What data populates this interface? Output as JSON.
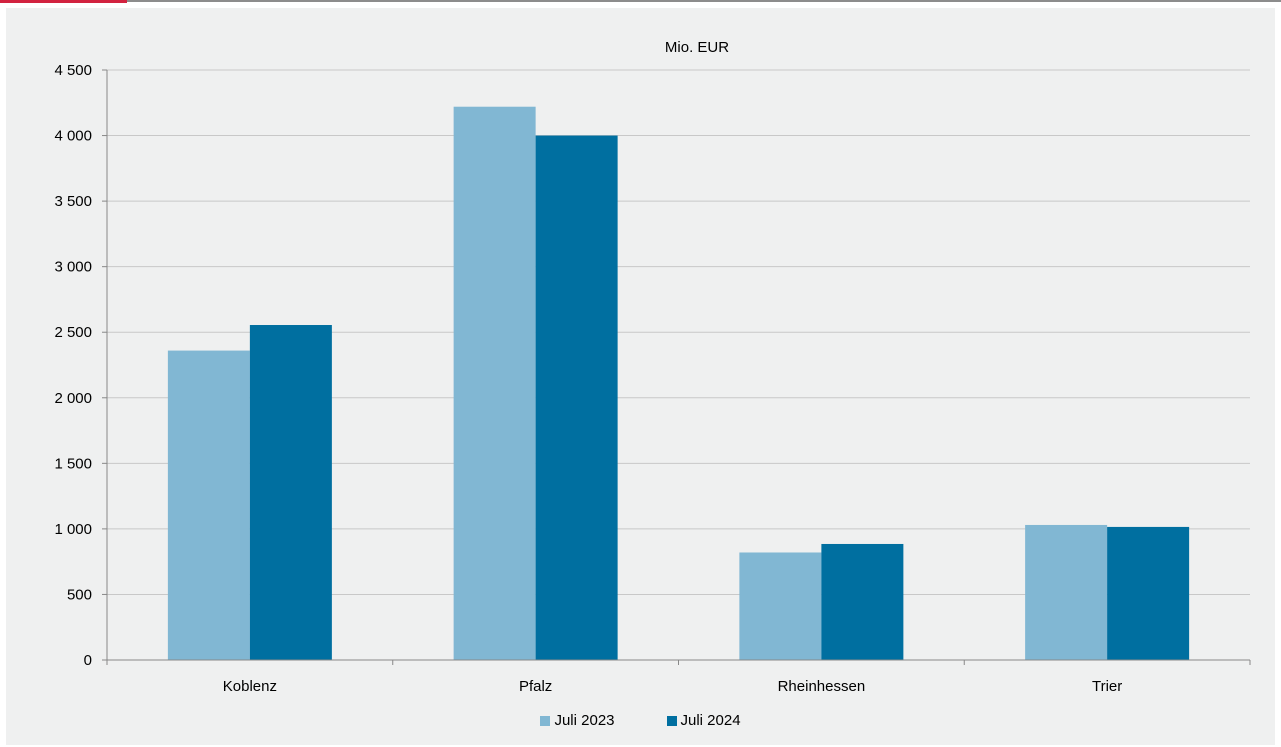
{
  "colors": {
    "accent": "#d2223f",
    "series_2023": "#81b7d3",
    "series_2024": "#006fa0",
    "grid": "#c8c8c8",
    "panel": "#eff0f0"
  },
  "chart_data": {
    "type": "bar",
    "title": "Mio. EUR",
    "xlabel": "",
    "ylabel": "",
    "categories": [
      "Koblenz",
      "Pfalz",
      "Rheinhessen",
      "Trier"
    ],
    "series": [
      {
        "name": "Juli 2023",
        "values": [
          2360,
          4220,
          820,
          1030
        ]
      },
      {
        "name": "Juli 2024",
        "values": [
          2555,
          4000,
          885,
          1015
        ]
      }
    ],
    "ylim": [
      0,
      4500
    ],
    "yticks": [
      0,
      500,
      1000,
      1500,
      2000,
      2500,
      3000,
      3500,
      4000,
      4500
    ],
    "ytick_labels": [
      "0",
      "500",
      "1 000",
      "1 500",
      "2 000",
      "2 500",
      "3 000",
      "3 500",
      "4 000",
      "4 500"
    ],
    "grid": true,
    "legend_position": "bottom"
  }
}
